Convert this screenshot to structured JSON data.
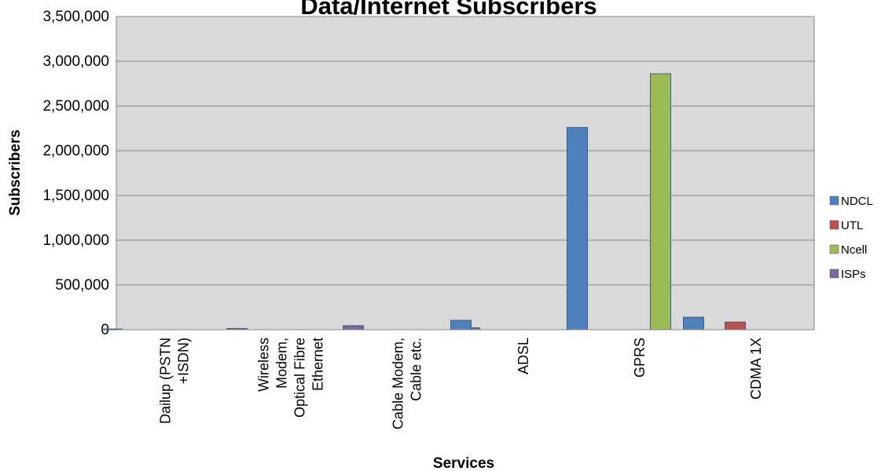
{
  "chart_data": {
    "type": "bar",
    "title": "Data/Internet Subscribers",
    "xlabel": "Services",
    "ylabel": "Subscribers",
    "ylim": [
      0,
      3500000
    ],
    "yticks": [
      "0",
      "500,000",
      "1,000,000",
      "1,500,000",
      "2,000,000",
      "2,500,000",
      "3,000,000",
      "3,500,000"
    ],
    "categories": [
      [
        "Dailup (PSTN",
        "+ISDN)"
      ],
      [
        "Wireless",
        "Modem,",
        "Optical Fibre",
        "Ethernet"
      ],
      [
        "Cable Modem,",
        "Cable etc."
      ],
      [
        "ADSL"
      ],
      [
        "GPRS"
      ],
      [
        "CDMA 1X"
      ]
    ],
    "series": [
      {
        "name": "NDCL",
        "color": "#4F81BD",
        "values": [
          8000,
          0,
          0,
          105000,
          2260000,
          140000
        ]
      },
      {
        "name": "UTL",
        "color": "#C0504D",
        "values": [
          0,
          0,
          0,
          0,
          0,
          85000
        ]
      },
      {
        "name": "Ncell",
        "color": "#9BBB59",
        "values": [
          0,
          0,
          0,
          0,
          2860000,
          0
        ]
      },
      {
        "name": "ISPs",
        "color": "#8064A2",
        "values": [
          14000,
          45000,
          22000,
          0,
          0,
          0
        ]
      }
    ],
    "grid": true,
    "legend_position": "right"
  }
}
